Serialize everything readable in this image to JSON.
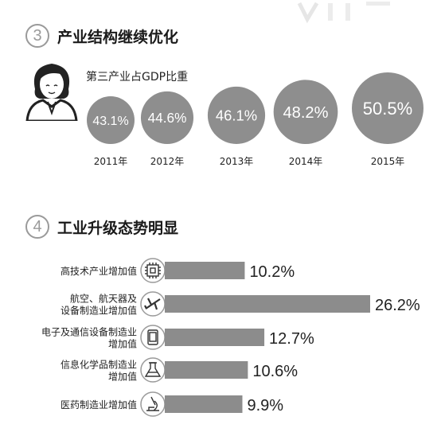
{
  "section3": {
    "number": "3",
    "title": "产业结构继续优化",
    "subtitle": "第三产业占GDP比重"
  },
  "section4": {
    "number": "4",
    "title": "工业升级态势明显"
  },
  "colors": {
    "bubble": "#8e8e8e",
    "bar": "#8c8c8c",
    "circle_stroke": "#9a9a9a"
  },
  "chart_data": [
    {
      "type": "scatter",
      "title": "第三产业占GDP比重",
      "categories": [
        "2011年",
        "2012年",
        "2013年",
        "2014年",
        "2015年"
      ],
      "values": [
        43.1,
        44.6,
        46.1,
        48.2,
        50.5
      ],
      "labels": [
        "43.1%",
        "44.6%",
        "46.1%",
        "48.2%",
        "50.5%"
      ]
    },
    {
      "type": "bar",
      "title": "",
      "categories": [
        [
          "高技术产业增加值"
        ],
        [
          "航空、航天器及",
          "设备制造业增加值"
        ],
        [
          "电子及通信设备制造业",
          "增加值"
        ],
        [
          "信息化学品制造业",
          "增加值"
        ],
        [
          "医药制造业增加值"
        ]
      ],
      "icons": [
        "chip-icon",
        "airplane-icon",
        "tablet-icon",
        "flask-icon",
        "microscope-icon"
      ],
      "values": [
        10.2,
        26.2,
        12.7,
        10.6,
        9.9
      ],
      "labels": [
        "10.2%",
        "26.2%",
        "12.7%",
        "10.6%",
        "9.9%"
      ],
      "xlim": [
        0,
        26.2
      ]
    }
  ]
}
